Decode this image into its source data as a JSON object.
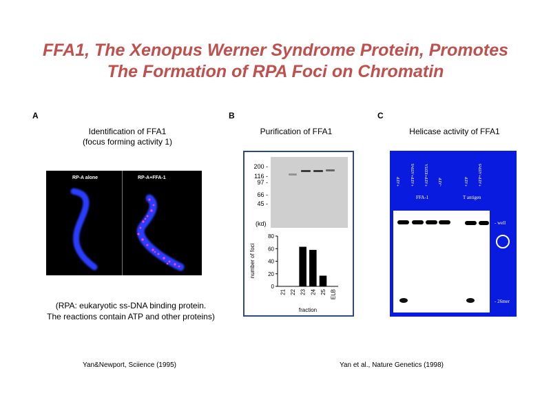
{
  "title": {
    "line1": "FFA1, The Xenopus Werner Syndrome Protein, Promotes",
    "line2": "The Formation of RPA Foci on Chromatin"
  },
  "panel_a": {
    "letter": "A",
    "title_line1": "Identification of FFA1",
    "title_line2": "(focus forming activity 1)",
    "image_label_left": "RP-A alone",
    "image_label_right": "RP-A+FFA-1",
    "note_line1": "(RPA: eukaryotic ss-DNA binding protein.",
    "note_line2": "The reactions contain ATP and other proteins)",
    "citation": "Yan&Newport,  Sciience (1995)"
  },
  "panel_b": {
    "letter": "B",
    "title": "Purification of FFA1",
    "mw_markers": [
      "200 -",
      "116 -",
      "97 -",
      "66 -",
      "45 -"
    ],
    "mw_unit": "(kd)",
    "chart_data": {
      "type": "bar",
      "categories": [
        "21",
        "22",
        "23",
        "24",
        "25",
        "ELB"
      ],
      "values": [
        0,
        0,
        63,
        58,
        17,
        0
      ],
      "xlabel": "fraction",
      "ylabel": "number of foci",
      "ylim": [
        0,
        80
      ],
      "yticks": [
        "0",
        "20",
        "40",
        "60",
        "80"
      ]
    }
  },
  "panel_c": {
    "letter": "C",
    "title": "Helicase activity of FFA1",
    "lanes": [
      "+ATP",
      "+ATP+ATPrS",
      "+ATP+EDTA",
      "-ATP",
      "+ATP",
      "+ATP+ATPrS"
    ],
    "group_left": "FFA-1",
    "group_right": "T antigen",
    "well_label": "- well",
    "substrate_label": "- 26mer",
    "citation": "Yan et al., Nature Genetics (1998)"
  }
}
